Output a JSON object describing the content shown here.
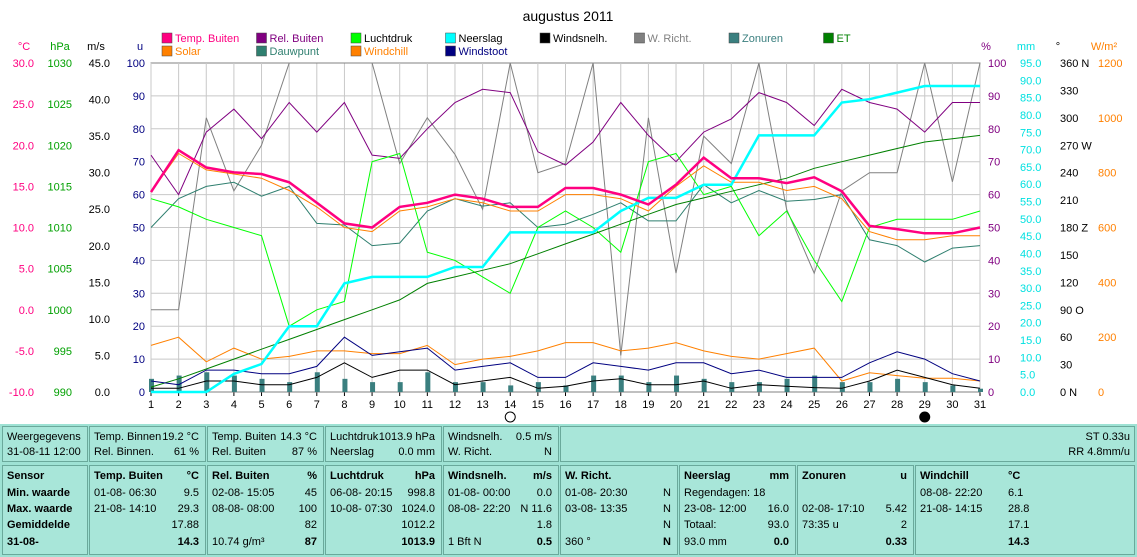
{
  "chart_data": {
    "type": "line",
    "title": "augustus 2011",
    "x": [
      1,
      2,
      3,
      4,
      5,
      6,
      7,
      8,
      9,
      10,
      11,
      12,
      13,
      14,
      15,
      16,
      17,
      18,
      19,
      20,
      21,
      22,
      23,
      24,
      25,
      26,
      27,
      28,
      29,
      30,
      31
    ],
    "xlim": [
      1,
      31
    ],
    "legend_items": [
      {
        "name": "Temp. Buiten",
        "color": "#ff0080"
      },
      {
        "name": "Rel. Buiten",
        "color": "#800080"
      },
      {
        "name": "Luchtdruk",
        "color": "#00ff00"
      },
      {
        "name": "Neerslag",
        "color": "#00ffff"
      },
      {
        "name": "Windsnelh.",
        "color": "#000000"
      },
      {
        "name": "W. Richt.",
        "color": "#808080"
      },
      {
        "name": "Zonuren",
        "color": "#3a7f7f"
      },
      {
        "name": "ET",
        "color": "#008000"
      },
      {
        "name": "Solar",
        "color": "#ff8000"
      },
      {
        "name": "Dauwpunt",
        "color": "#2f7f6f"
      },
      {
        "name": "Windchill",
        "color": "#ff8000"
      },
      {
        "name": "Windstoot",
        "color": "#000080"
      }
    ],
    "axes": [
      {
        "unit": "°C",
        "color": "#ff0080",
        "ticks": [
          "30.0",
          "25.0",
          "20.0",
          "15.0",
          "10.0",
          "5.0",
          "0.0",
          "-5.0",
          "-10.0"
        ]
      },
      {
        "unit": "hPa",
        "color": "#00a000",
        "ticks": [
          "1030",
          "1025",
          "1020",
          "1015",
          "1010",
          "1005",
          "1000",
          "995",
          "990"
        ]
      },
      {
        "unit": "m/s",
        "color": "#000000",
        "ticks": [
          "45.0",
          "40.0",
          "35.0",
          "30.0",
          "25.0",
          "20.0",
          "15.0",
          "10.0",
          "5.0",
          "0.0"
        ]
      },
      {
        "unit": "u",
        "color": "#000080",
        "ticks": [
          "100",
          "90",
          "80",
          "70",
          "60",
          "50",
          "40",
          "30",
          "20",
          "10",
          "0"
        ]
      },
      {
        "unit": "%",
        "color": "#800080",
        "ticks": [
          "100",
          "90",
          "80",
          "70",
          "60",
          "50",
          "40",
          "30",
          "20",
          "10",
          "0"
        ]
      },
      {
        "unit": "mm",
        "color": "#00e0e0",
        "ticks": [
          "95.0",
          "90.0",
          "85.0",
          "80.0",
          "75.0",
          "70.0",
          "65.0",
          "60.0",
          "55.0",
          "50.0",
          "45.0",
          "40.0",
          "35.0",
          "30.0",
          "25.0",
          "20.0",
          "15.0",
          "10.0",
          "5.0",
          "0.0"
        ]
      },
      {
        "unit": "°",
        "color": "#000000",
        "ticks": [
          "360 N",
          "330",
          "300",
          "270 W",
          "240",
          "210",
          "180 Z",
          "150",
          "120",
          "90 O",
          "60",
          "30",
          "0 N"
        ]
      },
      {
        "unit": "W/m²",
        "color": "#ff8000",
        "ticks": [
          "1200",
          "1000",
          "800",
          "600",
          "400",
          "200",
          "0"
        ]
      }
    ],
    "series": [
      {
        "name": "Temp. Buiten",
        "unit": "°C",
        "color": "#ff0080",
        "values": [
          14.3,
          19.4,
          17.3,
          16.7,
          16.5,
          15.5,
          13.0,
          10.5,
          10.0,
          12.5,
          13.0,
          14.0,
          13.5,
          12.5,
          12.5,
          14.8,
          14.8,
          14.0,
          12.8,
          15.2,
          18.5,
          16.0,
          16.0,
          15.4,
          16.1,
          14.4,
          10.2,
          9.8,
          9.3,
          9.3,
          10.0
        ]
      },
      {
        "name": "Rel. Buiten",
        "unit": "%",
        "color": "#800080",
        "values": [
          72,
          60,
          79,
          86,
          77,
          88,
          79,
          88,
          72,
          71,
          80,
          88,
          92,
          91,
          73,
          69,
          76,
          88,
          78,
          70,
          79,
          83,
          91,
          88,
          81,
          92,
          88,
          86,
          79,
          88,
          88
        ]
      },
      {
        "name": "Luchtdruk",
        "unit": "hPa",
        "color": "#00ff00",
        "values": [
          1013.5,
          1012.5,
          1011,
          1010,
          1009,
          998,
          1000,
          1001,
          1018,
          1019,
          1007,
          1006,
          1004,
          1002,
          1010,
          1012,
          1010,
          1007,
          1018,
          1019,
          1014,
          1015,
          1009,
          1012,
          1006,
          1001,
          1010,
          1011,
          1011,
          1011,
          1012
        ]
      },
      {
        "name": "Neerslag",
        "unit": "mm",
        "color": "#00ffff",
        "values": [
          0,
          0,
          0,
          5.5,
          8.5,
          20,
          20,
          33,
          35,
          35,
          35,
          38,
          38,
          48.5,
          48.5,
          48.5,
          48.5,
          55,
          59,
          59,
          63,
          63,
          78,
          78,
          78,
          88,
          89,
          91,
          93,
          93,
          93
        ]
      },
      {
        "name": "Windsnelh.",
        "unit": "m/s",
        "color": "#000000",
        "values": [
          0.5,
          0.5,
          1.5,
          1.5,
          1.0,
          1.0,
          2.0,
          4.0,
          2.0,
          3.0,
          3.0,
          1.0,
          1.5,
          2.0,
          0.5,
          0.8,
          1.5,
          1.8,
          1.0,
          1.0,
          1.5,
          0.5,
          1.0,
          0.8,
          0.6,
          0.5,
          1.5,
          3.0,
          2.0,
          1.0,
          0.5
        ]
      },
      {
        "name": "W. Richt.",
        "unit": "°",
        "color": "#808080",
        "values": [
          90,
          90,
          300,
          220,
          270,
          360,
          360,
          360,
          360,
          250,
          300,
          260,
          200,
          360,
          240,
          250,
          360,
          40,
          300,
          130,
          280,
          250,
          360,
          200,
          130,
          220,
          240,
          240,
          360,
          230,
          360
        ]
      },
      {
        "name": "Zonuren",
        "unit": "u",
        "color": "#3a7f7f",
        "values": [
          4,
          5,
          6,
          5,
          4,
          3,
          6,
          4,
          3,
          3,
          6,
          3,
          3,
          2,
          3,
          2,
          5,
          5,
          3,
          5,
          4,
          3,
          3,
          4,
          5,
          3,
          3,
          4,
          3,
          2,
          1
        ]
      },
      {
        "name": "ET",
        "unit": "mm",
        "color": "#008000",
        "values": [
          1.5,
          4,
          7,
          10,
          13,
          16,
          19,
          22,
          25,
          28,
          33,
          35,
          37,
          39,
          42,
          45,
          48,
          51,
          54,
          57,
          59,
          61,
          63,
          65,
          68,
          70,
          72,
          74,
          76,
          77,
          78
        ]
      },
      {
        "name": "Solar",
        "unit": "W/m²",
        "color": "#ff8000",
        "values": [
          170,
          200,
          110,
          160,
          120,
          130,
          150,
          150,
          140,
          140,
          170,
          100,
          120,
          130,
          150,
          180,
          180,
          150,
          160,
          180,
          150,
          130,
          120,
          140,
          160,
          40,
          70,
          60,
          50,
          50,
          40
        ]
      },
      {
        "name": "Dauwpunt",
        "unit": "°C",
        "color": "#2f7f6f",
        "values": [
          10.0,
          13.5,
          15.0,
          15.5,
          13.8,
          15.0,
          10.5,
          10.3,
          7.8,
          8.1,
          12.0,
          13.5,
          12.6,
          13.0,
          10.0,
          10.4,
          11.6,
          13.0,
          10.8,
          10.8,
          15.2,
          13.0,
          14.5,
          13.2,
          13.4,
          14.0,
          8.5,
          7.8,
          5.8,
          7.5,
          7.8
        ]
      },
      {
        "name": "Windchill",
        "unit": "°C",
        "color": "#ff8000",
        "values": [
          14.3,
          19.0,
          17.0,
          16.5,
          16.0,
          14.5,
          12.5,
          10.0,
          9.5,
          12.0,
          12.5,
          13.5,
          13.0,
          12.0,
          12.0,
          14.0,
          14.0,
          13.5,
          12.0,
          15.0,
          17.5,
          15.5,
          15.5,
          14.5,
          15.0,
          13.5,
          9.5,
          8.5,
          8.5,
          9.0,
          9.0
        ]
      },
      {
        "name": "Windstoot",
        "unit": "m/s",
        "color": "#000080",
        "values": [
          1.5,
          1.0,
          3.0,
          3.0,
          2.5,
          2.5,
          3.5,
          7.5,
          5.0,
          5.5,
          6.0,
          3.0,
          3.5,
          4.0,
          2.0,
          2.0,
          4.0,
          3.5,
          3.0,
          4.0,
          4.0,
          2.5,
          3.0,
          2.0,
          2.0,
          2.0,
          4.0,
          5.5,
          4.5,
          2.5,
          1.5
        ]
      }
    ],
    "markers": {
      "new_moon_day": 29,
      "full_moon_day": 14
    },
    "grid": true
  },
  "panel": {
    "weergegevens": {
      "label": "Weergegevens",
      "datetime": "31-08-11 12:00"
    },
    "temp_binnen": {
      "label": "Temp. Binnen",
      "value": "19.2 °C"
    },
    "rel_binnen": {
      "label": "Rel. Binnen.",
      "value": "61 %"
    },
    "temp_buiten": {
      "label": "Temp. Buiten",
      "value": "14.3 °C"
    },
    "rel_buiten": {
      "label": "Rel. Buiten",
      "value": "87 %"
    },
    "luchtdruk": {
      "label": "Luchtdruk",
      "value": "1013.9 hPa"
    },
    "neerslag": {
      "label": "Neerslag",
      "value": "0.0 mm"
    },
    "windsnelh": {
      "label": "Windsnelh.",
      "value": "0.5 m/s"
    },
    "w_richt": {
      "label": "W. Richt.",
      "value": "N"
    },
    "st": "ST 0.33u",
    "rr": "RR 4.8mm/u",
    "row_labels": [
      "Sensor",
      "Min. waarde",
      "Max. waarde",
      "Gemiddelde",
      "31-08-"
    ],
    "tables": [
      {
        "title": "Temp. Buiten",
        "unit": "°C",
        "rows": [
          [
            "01-08-  06:30",
            "9.5"
          ],
          [
            "21-08-  14:10",
            "29.3"
          ],
          [
            "",
            "17.88"
          ],
          [
            "",
            "14.3"
          ]
        ]
      },
      {
        "title": "Rel. Buiten",
        "unit": "%",
        "rows": [
          [
            "02-08-  15:05",
            "45"
          ],
          [
            "08-08-  08:00",
            "100"
          ],
          [
            "",
            "82"
          ],
          [
            "10.74 g/m³",
            "87"
          ]
        ]
      },
      {
        "title": "Luchtdruk",
        "unit": "hPa",
        "rows": [
          [
            "06-08-  20:15",
            "998.8"
          ],
          [
            "10-08-  07:30",
            "1024.0"
          ],
          [
            "",
            "1012.2"
          ],
          [
            "",
            "1013.9"
          ]
        ]
      },
      {
        "title": "Windsnelh.",
        "unit": "m/s",
        "rows": [
          [
            "01-08-  00:00",
            "0.0"
          ],
          [
            "08-08-  22:20",
            "N 11.6"
          ],
          [
            "",
            "1.8"
          ],
          [
            "1 Bft N",
            "0.5"
          ]
        ]
      },
      {
        "title": "W. Richt.",
        "unit": "",
        "rows": [
          [
            "01-08-  20:30",
            "N"
          ],
          [
            "03-08-  13:35",
            "N"
          ],
          [
            "",
            "N"
          ],
          [
            "360 °",
            "N"
          ]
        ]
      },
      {
        "title": "Neerslag",
        "unit": "mm",
        "rows": [
          [
            "Regendagen: 18",
            ""
          ],
          [
            "23-08-  12:00",
            "16.0"
          ],
          [
            "Totaal:",
            "93.0"
          ],
          [
            "93.0 mm",
            "0.0"
          ]
        ]
      },
      {
        "title": "Zonuren",
        "unit": "u",
        "rows": [
          [
            "",
            ""
          ],
          [
            "02-08-  17:10",
            "5.42"
          ],
          [
            "73:35 u",
            "2"
          ],
          [
            "",
            "0.33"
          ]
        ]
      },
      {
        "title": "Windchill",
        "unit": "°C",
        "rows": [
          [
            "08-08-  22:20",
            "6.1"
          ],
          [
            "21-08-  14:15",
            "28.8"
          ],
          [
            "",
            "17.1"
          ],
          [
            "",
            "14.3"
          ]
        ]
      }
    ]
  }
}
